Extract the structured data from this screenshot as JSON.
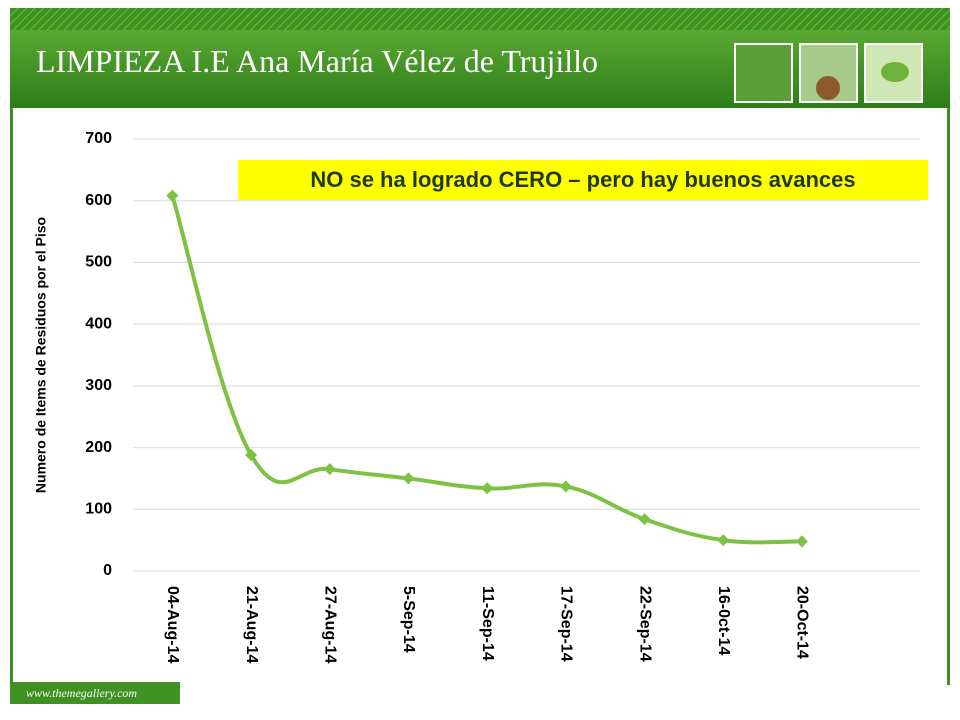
{
  "chart_data": {
    "type": "line",
    "title": "LIMPIEZA I.E Ana María Vélez de Trujillo",
    "annotation": "NO se ha logrado CERO – pero hay buenos avances",
    "y_label": "Numero de Items de Residuos por el Piso",
    "categories": [
      "04-Aug-14",
      "21-Aug-14",
      "27-Aug-14",
      "5-Sep-14",
      "11-Sep-14",
      "17-Sep-14",
      "22-Sep-14",
      "16-0ct-14",
      "20-Oct-14",
      null
    ],
    "values": [
      608,
      188,
      165,
      150,
      134,
      137,
      84,
      50,
      48,
      null
    ],
    "color": "#7dc242",
    "ylim": [
      0,
      700
    ],
    "yticks": [
      0,
      100,
      200,
      300,
      400,
      500,
      600,
      700
    ],
    "grid": true
  },
  "footer": "www.themegallery.com"
}
